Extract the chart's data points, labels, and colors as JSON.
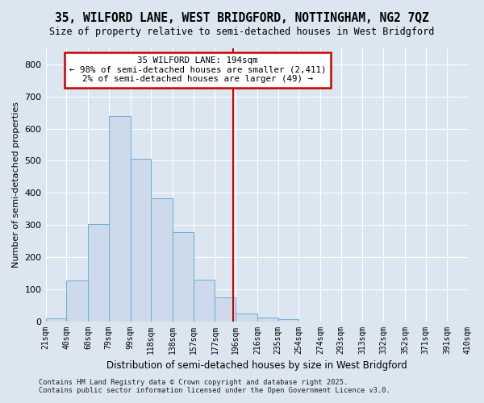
{
  "title": "35, WILFORD LANE, WEST BRIDGFORD, NOTTINGHAM, NG2 7QZ",
  "subtitle": "Size of property relative to semi-detached houses in West Bridgford",
  "xlabel": "Distribution of semi-detached houses by size in West Bridgford",
  "ylabel": "Number of semi-detached properties",
  "bin_labels": [
    "21sqm",
    "40sqm",
    "60sqm",
    "79sqm",
    "99sqm",
    "118sqm",
    "138sqm",
    "157sqm",
    "177sqm",
    "196sqm",
    "216sqm",
    "235sqm",
    "254sqm",
    "274sqm",
    "293sqm",
    "313sqm",
    "332sqm",
    "352sqm",
    "371sqm",
    "391sqm",
    "410sqm"
  ],
  "bin_edges": [
    21,
    40,
    60,
    79,
    99,
    118,
    138,
    157,
    177,
    196,
    216,
    235,
    254,
    274,
    293,
    313,
    332,
    352,
    371,
    391,
    410
  ],
  "bar_heights": [
    8,
    127,
    303,
    638,
    505,
    383,
    278,
    130,
    73,
    25,
    11,
    6,
    0,
    0,
    0,
    0,
    0,
    0,
    0,
    0
  ],
  "bar_color": "#cddaeb",
  "bar_edgecolor": "#6baed6",
  "vline_x": 194,
  "vline_color": "#cc0000",
  "annotation_title": "35 WILFORD LANE: 194sqm",
  "annotation_line2": "← 98% of semi-detached houses are smaller (2,411)",
  "annotation_line3": "2% of semi-detached houses are larger (49) →",
  "annotation_box_edgecolor": "#cc0000",
  "annotation_box_facecolor": "#ffffff",
  "ylim": [
    0,
    850
  ],
  "yticks": [
    0,
    100,
    200,
    300,
    400,
    500,
    600,
    700,
    800
  ],
  "background_color": "#dce6f0",
  "grid_color": "#ffffff",
  "footer_line1": "Contains HM Land Registry data © Crown copyright and database right 2025.",
  "footer_line2": "Contains public sector information licensed under the Open Government Licence v3.0."
}
